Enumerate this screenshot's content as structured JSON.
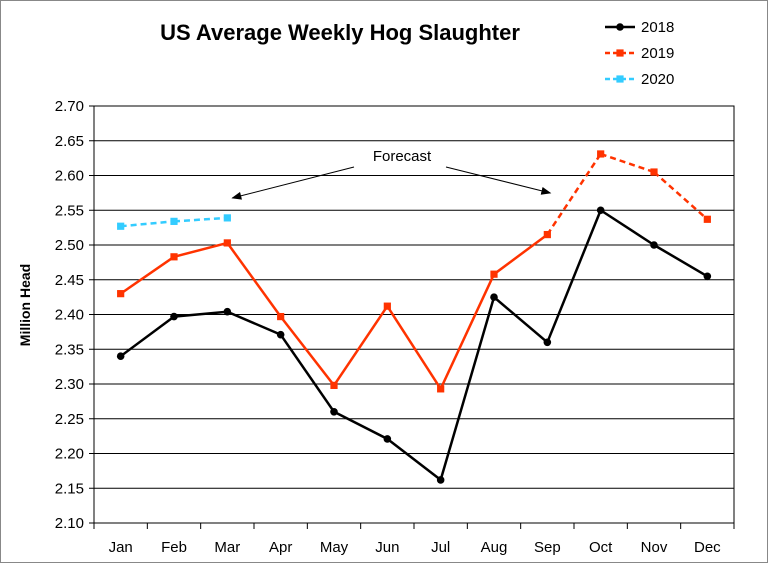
{
  "chart_data": {
    "type": "line",
    "title": "US Average Weekly Hog Slaughter",
    "ylabel": "Million  Head",
    "xlabel": "",
    "ylim": [
      2.1,
      2.7
    ],
    "ytick_step": 0.05,
    "grid": true,
    "legend_position": "top-right",
    "categories": [
      "Jan",
      "Feb",
      "Mar",
      "Apr",
      "May",
      "Jun",
      "Jul",
      "Aug",
      "Sep",
      "Oct",
      "Nov",
      "Dec"
    ],
    "yticks": [
      "2.10",
      "2.15",
      "2.20",
      "2.25",
      "2.30",
      "2.35",
      "2.40",
      "2.45",
      "2.50",
      "2.55",
      "2.60",
      "2.65",
      "2.70"
    ],
    "series": [
      {
        "name": "2018",
        "color": "#000000",
        "marker": "circle",
        "dash": false,
        "values": [
          2.34,
          2.397,
          2.404,
          2.371,
          2.26,
          2.221,
          2.162,
          2.425,
          2.36,
          2.55,
          2.5,
          2.455
        ]
      },
      {
        "name": "2019",
        "color": "#ff3300",
        "marker": "square",
        "dash": false,
        "forecast_from_index": 8,
        "values": [
          2.43,
          2.483,
          2.503,
          2.397,
          2.298,
          2.412,
          2.293,
          2.458,
          2.515,
          2.631,
          2.605,
          2.537
        ]
      },
      {
        "name": "2020",
        "color": "#33ccff",
        "marker": "square",
        "dash": true,
        "values": [
          2.527,
          2.534,
          2.539,
          null,
          null,
          null,
          null,
          null,
          null,
          null,
          null,
          null
        ]
      }
    ],
    "annotations": [
      {
        "text": "Forecast",
        "arrow_targets": [
          "Mar",
          "Sep"
        ]
      }
    ]
  }
}
